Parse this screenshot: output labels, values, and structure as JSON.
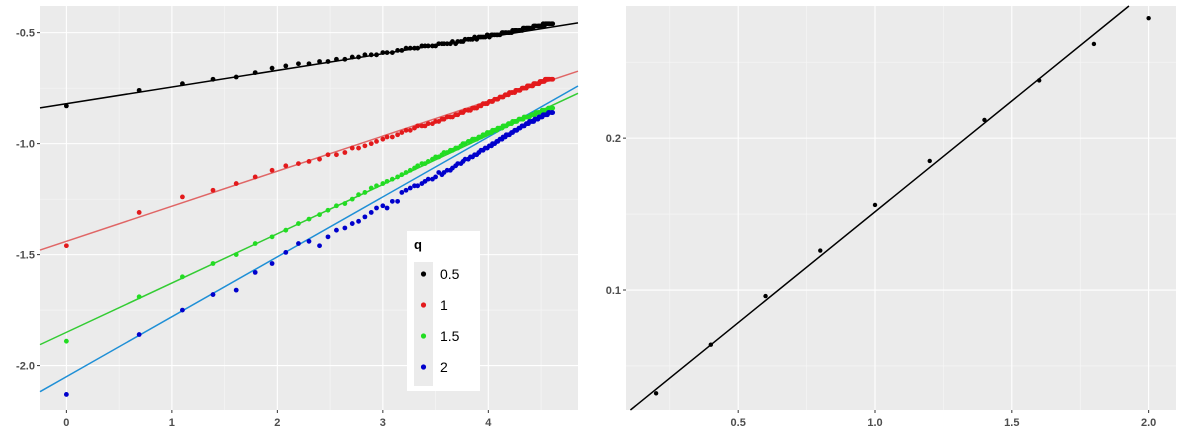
{
  "chart_data": [
    {
      "type": "scatter",
      "title": "",
      "xlabel": "",
      "ylabel": "",
      "xlim": [
        -0.25,
        4.85
      ],
      "ylim": [
        -2.2,
        -0.38
      ],
      "x_ticks": [
        0,
        1,
        2,
        3,
        4
      ],
      "x_tick_labels": [
        "0",
        "1",
        "2",
        "3",
        "4"
      ],
      "y_ticks": [
        -2.0,
        -1.5,
        -1.0,
        -0.5
      ],
      "y_tick_labels": [
        "-2.0",
        "-1.5",
        "-1.0",
        "-0.5"
      ],
      "grid": true,
      "legend": {
        "title": "q",
        "position": "inside-right",
        "entries": [
          "0.5",
          "1",
          "1.5",
          "2"
        ]
      },
      "series": [
        {
          "name": "0.5",
          "color": "#000000",
          "line_color": "#000000",
          "fit": {
            "intercept": -0.82,
            "slope": 0.075
          },
          "x": [
            0,
            0.69,
            1.1,
            1.39,
            1.61,
            1.79,
            1.95,
            2.08,
            2.2,
            2.3,
            2.4,
            2.48,
            2.56,
            2.64,
            2.71,
            2.77,
            2.83,
            2.89,
            2.94,
            3.0,
            3.04,
            3.09,
            3.14,
            3.18,
            3.22,
            3.26,
            3.3,
            3.33,
            3.37,
            3.4,
            3.43,
            3.47,
            3.5,
            3.53,
            3.56,
            3.58,
            3.61,
            3.64,
            3.66,
            3.69,
            3.71,
            3.74,
            3.76,
            3.78,
            3.81,
            3.83,
            3.85,
            3.87,
            3.89,
            3.91,
            3.93,
            3.95,
            3.97,
            3.99,
            4.01,
            4.03,
            4.04,
            4.06,
            4.08,
            4.09,
            4.11,
            4.13,
            4.14,
            4.16,
            4.17,
            4.19,
            4.2,
            4.22,
            4.23,
            4.25,
            4.26,
            4.27,
            4.29,
            4.3,
            4.32,
            4.33,
            4.34,
            4.36,
            4.37,
            4.38,
            4.39,
            4.41,
            4.42,
            4.43,
            4.44,
            4.45,
            4.47,
            4.48,
            4.49,
            4.5,
            4.51,
            4.52,
            4.53,
            4.54,
            4.55,
            4.56,
            4.57,
            4.58,
            4.6,
            4.61
          ],
          "y": [
            -0.83,
            -0.76,
            -0.73,
            -0.71,
            -0.7,
            -0.68,
            -0.66,
            -0.65,
            -0.64,
            -0.64,
            -0.63,
            -0.63,
            -0.62,
            -0.62,
            -0.61,
            -0.61,
            -0.6,
            -0.6,
            -0.6,
            -0.59,
            -0.59,
            -0.59,
            -0.58,
            -0.58,
            -0.57,
            -0.57,
            -0.57,
            -0.57,
            -0.56,
            -0.56,
            -0.56,
            -0.56,
            -0.56,
            -0.55,
            -0.55,
            -0.55,
            -0.55,
            -0.55,
            -0.54,
            -0.55,
            -0.54,
            -0.54,
            -0.54,
            -0.53,
            -0.53,
            -0.53,
            -0.53,
            -0.52,
            -0.53,
            -0.52,
            -0.52,
            -0.52,
            -0.52,
            -0.51,
            -0.52,
            -0.51,
            -0.51,
            -0.51,
            -0.51,
            -0.51,
            -0.51,
            -0.5,
            -0.5,
            -0.5,
            -0.5,
            -0.5,
            -0.5,
            -0.5,
            -0.49,
            -0.49,
            -0.49,
            -0.49,
            -0.49,
            -0.49,
            -0.49,
            -0.48,
            -0.48,
            -0.48,
            -0.48,
            -0.48,
            -0.48,
            -0.48,
            -0.48,
            -0.47,
            -0.47,
            -0.47,
            -0.47,
            -0.47,
            -0.47,
            -0.47,
            -0.47,
            -0.46,
            -0.47,
            -0.46,
            -0.46,
            -0.46,
            -0.46,
            -0.46,
            -0.46,
            -0.46
          ]
        },
        {
          "name": "1",
          "color": "#e31a1c",
          "line_color": "#e06666",
          "fit": {
            "intercept": -1.44,
            "slope": 0.158
          },
          "x": [
            0,
            0.69,
            1.1,
            1.39,
            1.61,
            1.79,
            1.95,
            2.08,
            2.2,
            2.3,
            2.4,
            2.48,
            2.56,
            2.64,
            2.71,
            2.77,
            2.83,
            2.89,
            2.94,
            3.0,
            3.04,
            3.09,
            3.14,
            3.18,
            3.22,
            3.26,
            3.3,
            3.33,
            3.37,
            3.4,
            3.43,
            3.47,
            3.5,
            3.53,
            3.56,
            3.58,
            3.61,
            3.64,
            3.66,
            3.69,
            3.71,
            3.74,
            3.76,
            3.78,
            3.81,
            3.83,
            3.85,
            3.87,
            3.89,
            3.91,
            3.93,
            3.95,
            3.97,
            3.99,
            4.01,
            4.03,
            4.04,
            4.06,
            4.08,
            4.09,
            4.11,
            4.13,
            4.14,
            4.16,
            4.17,
            4.19,
            4.2,
            4.22,
            4.23,
            4.25,
            4.26,
            4.27,
            4.29,
            4.3,
            4.32,
            4.33,
            4.34,
            4.36,
            4.37,
            4.38,
            4.39,
            4.41,
            4.42,
            4.43,
            4.44,
            4.45,
            4.47,
            4.48,
            4.49,
            4.5,
            4.51,
            4.52,
            4.53,
            4.54,
            4.55,
            4.56,
            4.57,
            4.58,
            4.6,
            4.61
          ],
          "y": [
            -1.46,
            -1.31,
            -1.24,
            -1.21,
            -1.18,
            -1.15,
            -1.12,
            -1.1,
            -1.09,
            -1.08,
            -1.07,
            -1.05,
            -1.05,
            -1.04,
            -1.02,
            -1.02,
            -1.01,
            -1.0,
            -0.99,
            -0.98,
            -0.97,
            -0.97,
            -0.96,
            -0.95,
            -0.94,
            -0.94,
            -0.93,
            -0.92,
            -0.92,
            -0.92,
            -0.91,
            -0.91,
            -0.9,
            -0.9,
            -0.89,
            -0.89,
            -0.88,
            -0.88,
            -0.88,
            -0.87,
            -0.87,
            -0.86,
            -0.86,
            -0.85,
            -0.85,
            -0.85,
            -0.84,
            -0.84,
            -0.84,
            -0.83,
            -0.83,
            -0.82,
            -0.82,
            -0.82,
            -0.81,
            -0.81,
            -0.81,
            -0.8,
            -0.8,
            -0.8,
            -0.79,
            -0.79,
            -0.79,
            -0.78,
            -0.78,
            -0.78,
            -0.77,
            -0.77,
            -0.77,
            -0.77,
            -0.76,
            -0.76,
            -0.76,
            -0.76,
            -0.75,
            -0.75,
            -0.75,
            -0.75,
            -0.74,
            -0.74,
            -0.74,
            -0.74,
            -0.74,
            -0.73,
            -0.73,
            -0.73,
            -0.73,
            -0.73,
            -0.72,
            -0.72,
            -0.72,
            -0.72,
            -0.72,
            -0.71,
            -0.71,
            -0.71,
            -0.71,
            -0.71,
            -0.71,
            -0.71
          ]
        },
        {
          "name": "1.5",
          "color": "#22dd22",
          "line_color": "#33cc33",
          "fit": {
            "intercept": -1.85,
            "slope": 0.222
          },
          "x": [
            0,
            0.69,
            1.1,
            1.39,
            1.61,
            1.79,
            1.95,
            2.08,
            2.2,
            2.3,
            2.4,
            2.48,
            2.56,
            2.64,
            2.71,
            2.77,
            2.83,
            2.89,
            2.94,
            3.0,
            3.04,
            3.09,
            3.14,
            3.18,
            3.22,
            3.26,
            3.3,
            3.33,
            3.37,
            3.4,
            3.43,
            3.47,
            3.5,
            3.53,
            3.56,
            3.58,
            3.61,
            3.64,
            3.66,
            3.69,
            3.71,
            3.74,
            3.76,
            3.78,
            3.81,
            3.83,
            3.85,
            3.87,
            3.89,
            3.91,
            3.93,
            3.95,
            3.97,
            3.99,
            4.01,
            4.03,
            4.04,
            4.06,
            4.08,
            4.09,
            4.11,
            4.13,
            4.14,
            4.16,
            4.17,
            4.19,
            4.2,
            4.22,
            4.23,
            4.25,
            4.26,
            4.27,
            4.29,
            4.3,
            4.32,
            4.33,
            4.34,
            4.36,
            4.37,
            4.38,
            4.39,
            4.41,
            4.42,
            4.43,
            4.44,
            4.45,
            4.47,
            4.48,
            4.49,
            4.5,
            4.51,
            4.52,
            4.53,
            4.54,
            4.55,
            4.56,
            4.57,
            4.58,
            4.6,
            4.61
          ],
          "y": [
            -1.89,
            -1.69,
            -1.6,
            -1.54,
            -1.5,
            -1.45,
            -1.42,
            -1.39,
            -1.36,
            -1.34,
            -1.32,
            -1.3,
            -1.28,
            -1.27,
            -1.25,
            -1.23,
            -1.22,
            -1.2,
            -1.19,
            -1.18,
            -1.17,
            -1.16,
            -1.15,
            -1.14,
            -1.13,
            -1.12,
            -1.11,
            -1.1,
            -1.09,
            -1.09,
            -1.08,
            -1.07,
            -1.06,
            -1.06,
            -1.05,
            -1.04,
            -1.04,
            -1.03,
            -1.03,
            -1.02,
            -1.02,
            -1.01,
            -1.0,
            -1.0,
            -0.99,
            -0.99,
            -0.98,
            -0.98,
            -0.98,
            -0.97,
            -0.97,
            -0.96,
            -0.96,
            -0.95,
            -0.95,
            -0.95,
            -0.94,
            -0.94,
            -0.94,
            -0.93,
            -0.93,
            -0.93,
            -0.92,
            -0.92,
            -0.92,
            -0.91,
            -0.91,
            -0.91,
            -0.9,
            -0.9,
            -0.9,
            -0.9,
            -0.89,
            -0.89,
            -0.89,
            -0.89,
            -0.88,
            -0.88,
            -0.88,
            -0.88,
            -0.88,
            -0.87,
            -0.87,
            -0.87,
            -0.87,
            -0.86,
            -0.86,
            -0.86,
            -0.86,
            -0.86,
            -0.85,
            -0.85,
            -0.85,
            -0.85,
            -0.85,
            -0.85,
            -0.84,
            -0.84,
            -0.84,
            -0.84
          ]
        },
        {
          "name": "2",
          "color": "#0000cc",
          "line_color": "#1e8fd6",
          "fit": {
            "intercept": -2.05,
            "slope": 0.27
          },
          "x": [
            0,
            0.69,
            1.1,
            1.39,
            1.61,
            1.79,
            1.95,
            2.08,
            2.2,
            2.3,
            2.4,
            2.48,
            2.56,
            2.64,
            2.71,
            2.77,
            2.83,
            2.89,
            2.94,
            3.0,
            3.04,
            3.09,
            3.14,
            3.18,
            3.22,
            3.26,
            3.3,
            3.33,
            3.37,
            3.4,
            3.43,
            3.47,
            3.5,
            3.53,
            3.56,
            3.58,
            3.61,
            3.64,
            3.66,
            3.69,
            3.71,
            3.74,
            3.76,
            3.78,
            3.81,
            3.83,
            3.85,
            3.87,
            3.89,
            3.91,
            3.93,
            3.95,
            3.97,
            3.99,
            4.01,
            4.03,
            4.04,
            4.06,
            4.08,
            4.09,
            4.11,
            4.13,
            4.14,
            4.16,
            4.17,
            4.19,
            4.2,
            4.22,
            4.23,
            4.25,
            4.26,
            4.27,
            4.29,
            4.3,
            4.32,
            4.33,
            4.34,
            4.36,
            4.37,
            4.38,
            4.39,
            4.41,
            4.42,
            4.43,
            4.44,
            4.45,
            4.47,
            4.48,
            4.49,
            4.5,
            4.51,
            4.52,
            4.53,
            4.54,
            4.55,
            4.56,
            4.57,
            4.58,
            4.6,
            4.61
          ],
          "y": [
            -2.13,
            -1.86,
            -1.75,
            -1.68,
            -1.66,
            -1.58,
            -1.54,
            -1.49,
            -1.45,
            -1.44,
            -1.46,
            -1.42,
            -1.39,
            -1.38,
            -1.36,
            -1.35,
            -1.33,
            -1.31,
            -1.29,
            -1.28,
            -1.29,
            -1.26,
            -1.26,
            -1.22,
            -1.21,
            -1.2,
            -1.19,
            -1.19,
            -1.18,
            -1.17,
            -1.16,
            -1.16,
            -1.15,
            -1.13,
            -1.14,
            -1.13,
            -1.12,
            -1.12,
            -1.11,
            -1.1,
            -1.09,
            -1.09,
            -1.08,
            -1.07,
            -1.07,
            -1.06,
            -1.06,
            -1.05,
            -1.05,
            -1.04,
            -1.03,
            -1.03,
            -1.02,
            -1.02,
            -1.01,
            -1.01,
            -1.0,
            -1.0,
            -0.99,
            -0.99,
            -0.98,
            -0.98,
            -0.97,
            -0.97,
            -0.96,
            -0.96,
            -0.96,
            -0.95,
            -0.95,
            -0.94,
            -0.94,
            -0.94,
            -0.93,
            -0.93,
            -0.92,
            -0.92,
            -0.92,
            -0.91,
            -0.91,
            -0.91,
            -0.9,
            -0.9,
            -0.9,
            -0.9,
            -0.89,
            -0.89,
            -0.89,
            -0.88,
            -0.88,
            -0.88,
            -0.88,
            -0.87,
            -0.87,
            -0.87,
            -0.87,
            -0.87,
            -0.86,
            -0.86,
            -0.86,
            -0.86
          ]
        }
      ]
    },
    {
      "type": "scatter",
      "title": "",
      "xlabel": "",
      "ylabel": "",
      "xlim": [
        0.09,
        2.1
      ],
      "ylim": [
        0.021,
        0.287
      ],
      "x_ticks": [
        0.5,
        1.0,
        1.5,
        2.0
      ],
      "x_tick_labels": [
        "0.5",
        "1.0",
        "1.5",
        "2.0"
      ],
      "y_ticks": [
        0.1,
        0.2
      ],
      "y_tick_labels": [
        "0.1",
        "0.2"
      ],
      "grid": true,
      "series": [
        {
          "name": "",
          "color": "#000000",
          "line_color": "#000000",
          "fit": {
            "intercept": 0.0055,
            "slope": 0.146
          },
          "x": [
            0.2,
            0.4,
            0.6,
            0.8,
            1.0,
            1.2,
            1.4,
            1.6,
            1.8,
            2.0
          ],
          "y": [
            0.032,
            0.064,
            0.096,
            0.126,
            0.156,
            0.185,
            0.212,
            0.238,
            0.262,
            0.279
          ]
        }
      ]
    }
  ]
}
